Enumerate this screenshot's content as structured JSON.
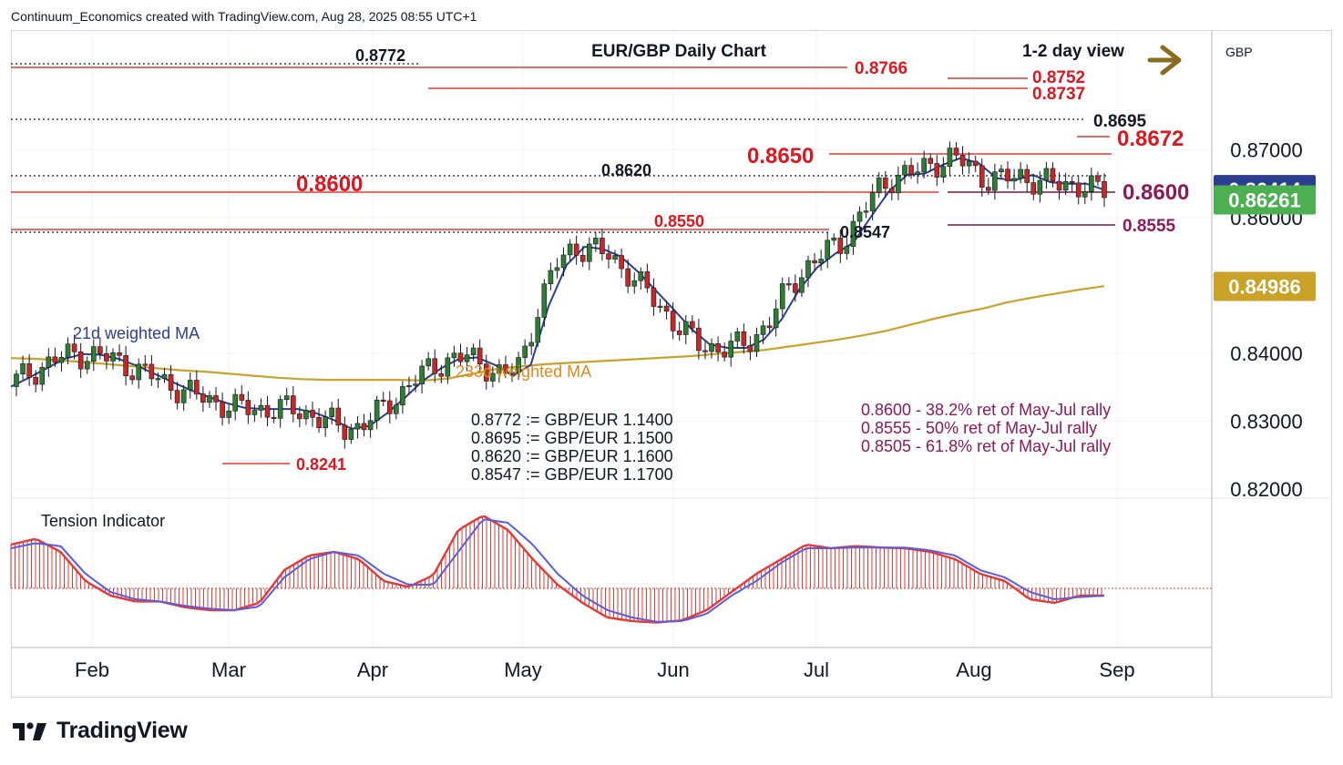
{
  "header": "Continuum_Economics created with TradingView.com, Aug 28, 2025 08:55 UTC+1",
  "title": "EUR/GBP Daily Chart",
  "view_label": "1-2 day view",
  "currency": "GBP",
  "brand": "TradingView",
  "colors": {
    "up_candle": "#2e7d32",
    "down_candle": "#c62828",
    "level_line": "#e53935",
    "level_text": "#e0161e",
    "ma21": "#2c3e8f",
    "ma233": "#c9a227",
    "note_text": "#8b1a5c",
    "arrow": "#8a6d1c",
    "tension_red": "#e53935",
    "tension_blue": "#5a5ce0"
  },
  "chart_data": [
    {
      "type": "candlestick",
      "title": "EUR/GBP Daily Chart",
      "y_ticks": [
        "0.87000",
        "0.86000",
        "0.84000",
        "0.83000",
        "0.82000"
      ],
      "ylim": [
        0.8188,
        0.8875
      ],
      "x_ticks": [
        "Feb",
        "Mar",
        "Apr",
        "May",
        "Jun",
        "Jul",
        "Aug",
        "Sep"
      ],
      "price_badges": [
        {
          "text": "0.86414",
          "value": 0.86414,
          "bg": "#2c3e8f",
          "fg": "#ffffff"
        },
        {
          "text": "0.86261",
          "value": 0.86261,
          "bg": "#4caf50",
          "fg": "#ffffff"
        },
        {
          "text": "0.84986",
          "value": 0.84986,
          "bg": "#c9a227",
          "fg": "#ffffff"
        }
      ],
      "series": [
        {
          "name": "21d weighted MA",
          "y": [
            0.8351,
            0.8364,
            0.8378,
            0.8392,
            0.8399,
            0.8398,
            0.8392,
            0.8382,
            0.837,
            0.8358,
            0.8346,
            0.8336,
            0.8327,
            0.832,
            0.8318,
            0.8318,
            0.8318,
            0.8312,
            0.8302,
            0.8289,
            0.8293,
            0.8312,
            0.8335,
            0.836,
            0.8378,
            0.8392,
            0.8394,
            0.8383,
            0.8367,
            0.8383,
            0.847,
            0.853,
            0.8557,
            0.8554,
            0.8543,
            0.852,
            0.8492,
            0.8464,
            0.8435,
            0.8413,
            0.8408,
            0.8408,
            0.842,
            0.845,
            0.8495,
            0.8527,
            0.8547,
            0.8563,
            0.8602,
            0.8639,
            0.8663,
            0.8665,
            0.8678,
            0.8688,
            0.868,
            0.8658,
            0.8655,
            0.8663,
            0.8652,
            0.865,
            0.865,
            0.8641
          ]
        },
        {
          "name": "233d weighted MA",
          "y": [
            0.8393,
            0.8392,
            0.839,
            0.8387,
            0.8384,
            0.8381,
            0.8378,
            0.8375,
            0.8373,
            0.837,
            0.8367,
            0.8364,
            0.8362,
            0.8361,
            0.8361,
            0.8361,
            0.8361,
            0.836,
            0.8363,
            0.837,
            0.8377,
            0.8381,
            0.8384,
            0.8386,
            0.8388,
            0.839,
            0.8392,
            0.8394,
            0.8396,
            0.8399,
            0.8402,
            0.8405,
            0.841,
            0.8415,
            0.842,
            0.8426,
            0.8433,
            0.8442,
            0.8451,
            0.8459,
            0.8466,
            0.8475,
            0.8482,
            0.8488,
            0.8494,
            0.8499
          ]
        }
      ],
      "levels": [
        {
          "label": "0.8772",
          "value": 0.8772,
          "style": "dotted"
        },
        {
          "label": "0.8766",
          "value": 0.8766,
          "style": "solid"
        },
        {
          "label": "0.8752",
          "value": 0.8752,
          "style": "solid"
        },
        {
          "label": "0.8737",
          "value": 0.8737,
          "style": "solid"
        },
        {
          "label": "0.8695",
          "value": 0.8695,
          "style": "dotted"
        },
        {
          "label": "0.8672",
          "value": 0.8672,
          "style": "solid"
        },
        {
          "label": "0.8650",
          "value": 0.865,
          "style": "solid"
        },
        {
          "label": "0.8620",
          "value": 0.862,
          "style": "dotted"
        },
        {
          "label": "0.8600",
          "value": 0.86,
          "style": "solid"
        },
        {
          "label": "0.8600",
          "value": 0.86,
          "style": "solid"
        },
        {
          "label": "0.8555",
          "value": 0.8555,
          "style": "solid"
        },
        {
          "label": "0.8550",
          "value": 0.855,
          "style": "solid"
        },
        {
          "label": "0.8547",
          "value": 0.8547,
          "style": "dotted"
        },
        {
          "label": "0.8241",
          "value": 0.8241,
          "style": "solid"
        }
      ],
      "annotations": {
        "conversions": [
          "0.8772 := GBP/EUR 1.1400",
          "0.8695 := GBP/EUR 1.1500",
          "0.8620 := GBP/EUR 1.1600",
          "0.8547 := GBP/EUR 1.1700"
        ],
        "retracements": [
          "0.8600 - 38.2% ret of May-Jul rally",
          "0.8555 - 50% ret of May-Jul rally",
          "0.8505 - 61.8% ret of May-Jul rally"
        ]
      }
    },
    {
      "type": "line",
      "title": "Tension Indicator",
      "series": [
        {
          "name": "red",
          "y": [
            0.6,
            0.68,
            0.5,
            0.1,
            -0.1,
            -0.18,
            -0.18,
            -0.26,
            -0.3,
            -0.3,
            -0.2,
            0.25,
            0.45,
            0.5,
            0.4,
            0.1,
            0.02,
            0.18,
            0.8,
            1.0,
            0.8,
            0.4,
            0.05,
            -0.2,
            -0.4,
            -0.45,
            -0.47,
            -0.44,
            -0.3,
            -0.05,
            0.2,
            0.4,
            0.6,
            0.55,
            0.58,
            0.56,
            0.55,
            0.5,
            0.4,
            0.2,
            0.1,
            -0.15,
            -0.2,
            -0.1,
            -0.1
          ]
        },
        {
          "name": "blue",
          "y": [
            0.55,
            0.62,
            0.58,
            0.2,
            -0.05,
            -0.15,
            -0.18,
            -0.24,
            -0.28,
            -0.3,
            -0.25,
            0.15,
            0.4,
            0.5,
            0.45,
            0.2,
            0.05,
            0.05,
            0.5,
            0.95,
            0.9,
            0.6,
            0.2,
            -0.1,
            -0.3,
            -0.4,
            -0.46,
            -0.45,
            -0.35,
            -0.1,
            0.1,
            0.35,
            0.55,
            0.55,
            0.56,
            0.56,
            0.56,
            0.52,
            0.45,
            0.25,
            0.15,
            -0.05,
            -0.15,
            -0.12,
            -0.1
          ]
        }
      ]
    }
  ]
}
